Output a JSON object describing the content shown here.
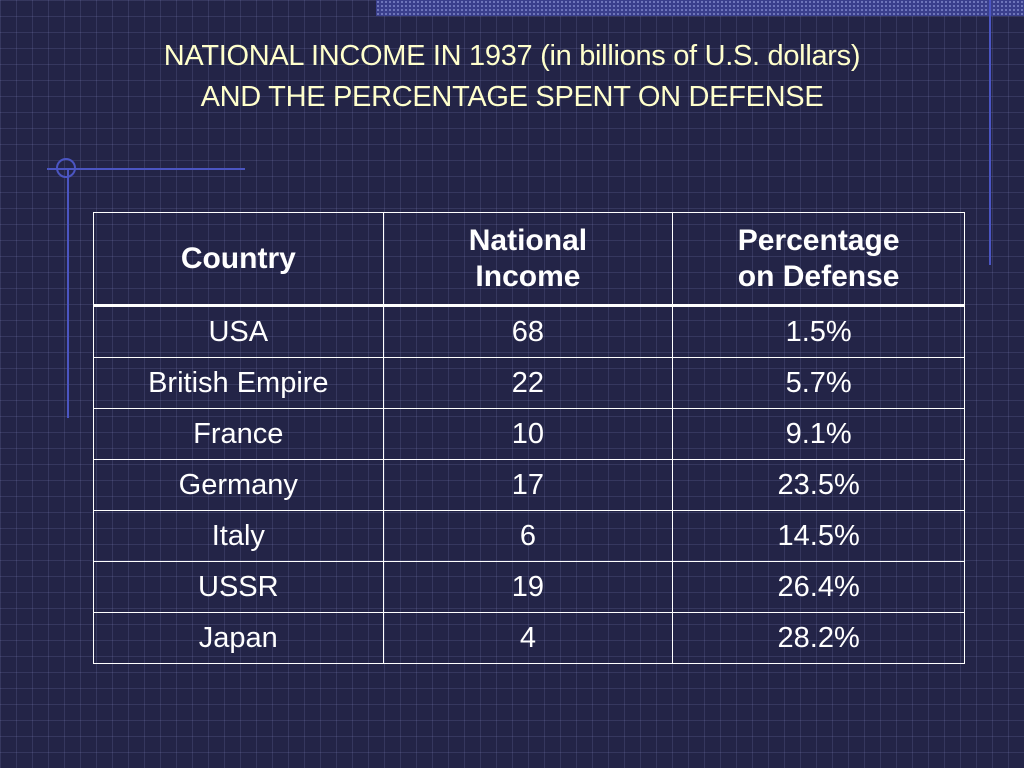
{
  "slide": {
    "title_line1": "NATIONAL INCOME IN 1937 (in billions of U.S. dollars)",
    "title_line2": "AND THE PERCENTAGE SPENT ON DEFENSE"
  },
  "table": {
    "headers": [
      {
        "line1": "Country",
        "line2": ""
      },
      {
        "line1": "National",
        "line2": "Income"
      },
      {
        "line1": "Percentage",
        "line2": "on Defense"
      }
    ],
    "rows": [
      {
        "country": "USA",
        "income": "68",
        "defense": "1.5%"
      },
      {
        "country": "British Empire",
        "income": "22",
        "defense": "5.7%"
      },
      {
        "country": "France",
        "income": "10",
        "defense": "9.1%"
      },
      {
        "country": "Germany",
        "income": "17",
        "defense": "23.5%"
      },
      {
        "country": "Italy",
        "income": "6",
        "defense": "14.5%"
      },
      {
        "country": "USSR",
        "income": "19",
        "defense": "26.4%"
      },
      {
        "country": "Japan",
        "income": "4",
        "defense": "28.2%"
      }
    ]
  },
  "colors": {
    "background": "#232447",
    "title_text": "#ffffcc",
    "table_text": "#ffffff",
    "accent_lines": "#4b55c2"
  }
}
